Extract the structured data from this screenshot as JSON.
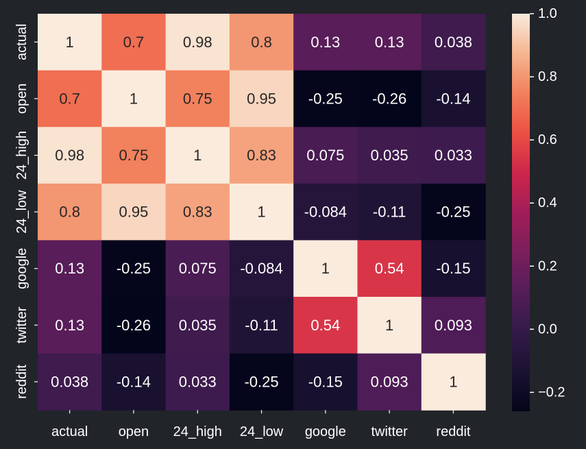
{
  "chart_data": {
    "type": "heatmap",
    "title": "",
    "xlabel": "",
    "ylabel": "",
    "x_labels": [
      "actual",
      "open",
      "24_high",
      "24_low",
      "google",
      "twitter",
      "reddit"
    ],
    "y_labels": [
      "actual",
      "open",
      "24_high",
      "24_low",
      "google",
      "twitter",
      "reddit"
    ],
    "values": [
      [
        1,
        0.7,
        0.98,
        0.8,
        0.13,
        0.13,
        0.038
      ],
      [
        0.7,
        1,
        0.75,
        0.95,
        -0.25,
        -0.26,
        -0.14
      ],
      [
        0.98,
        0.75,
        1,
        0.83,
        0.075,
        0.035,
        0.033
      ],
      [
        0.8,
        0.95,
        0.83,
        1,
        -0.084,
        -0.11,
        -0.25
      ],
      [
        0.13,
        -0.25,
        0.075,
        -0.084,
        1,
        0.54,
        -0.15
      ],
      [
        0.13,
        -0.26,
        0.035,
        -0.11,
        0.54,
        1,
        0.093
      ],
      [
        0.038,
        -0.14,
        0.033,
        -0.25,
        -0.15,
        0.093,
        1
      ]
    ],
    "color_range": [
      -0.26,
      1
    ],
    "colorbar_ticks": [
      "1.0",
      "0.8",
      "0.6",
      "0.4",
      "0.2",
      "0.0",
      "−0.2"
    ],
    "colorbar_tick_values": [
      1.0,
      0.8,
      0.6,
      0.4,
      0.2,
      0.0,
      -0.2
    ],
    "colormap": "rocket",
    "annotations": true,
    "grid": false
  }
}
